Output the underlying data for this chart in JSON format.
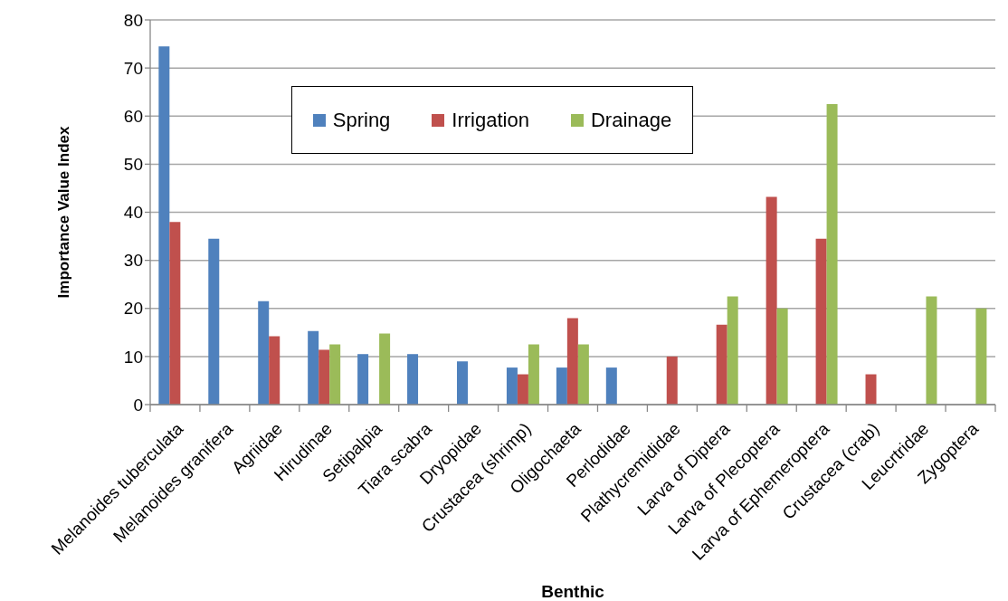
{
  "chart_data": {
    "type": "bar",
    "xlabel": "Benthic",
    "ylabel": "Importance Value Index",
    "categories": [
      "Melanoides tuberculata",
      "Melanoides granifera",
      "Agriidae",
      "Hirudinae",
      "Setipalpia",
      "Tiara scabra",
      "Dryopidae",
      "Crustacea (shrimp)",
      "Oligochaeta",
      "Perlodidae",
      "Plathycremididae",
      "Larva of Diptera",
      "Larva of Plecoptera",
      "Larva of Ephemeroptera",
      "Crustacea (crab)",
      "Leucrtridae",
      "Zygoptera"
    ],
    "series": [
      {
        "name": "Spring",
        "color": "#4f81bd",
        "values": [
          74.5,
          34.5,
          21.5,
          15.3,
          10.5,
          10.5,
          9,
          7.7,
          7.7,
          7.7,
          null,
          null,
          null,
          null,
          null,
          null,
          null
        ]
      },
      {
        "name": "Irrigation",
        "color": "#c0504d",
        "values": [
          38,
          null,
          14.2,
          11.4,
          null,
          null,
          null,
          6.3,
          18,
          null,
          10,
          16.6,
          43.2,
          34.5,
          6.3,
          null,
          null
        ]
      },
      {
        "name": "Drainage",
        "color": "#9bbb59",
        "values": [
          null,
          null,
          null,
          12.5,
          14.8,
          null,
          null,
          12.5,
          12.5,
          null,
          null,
          22.5,
          20,
          62.5,
          null,
          22.5,
          20
        ]
      }
    ],
    "ylim": [
      0,
      80
    ],
    "yticks": [
      0,
      10,
      20,
      30,
      40,
      50,
      60,
      70,
      80
    ],
    "grid": "y",
    "legend": "top"
  }
}
